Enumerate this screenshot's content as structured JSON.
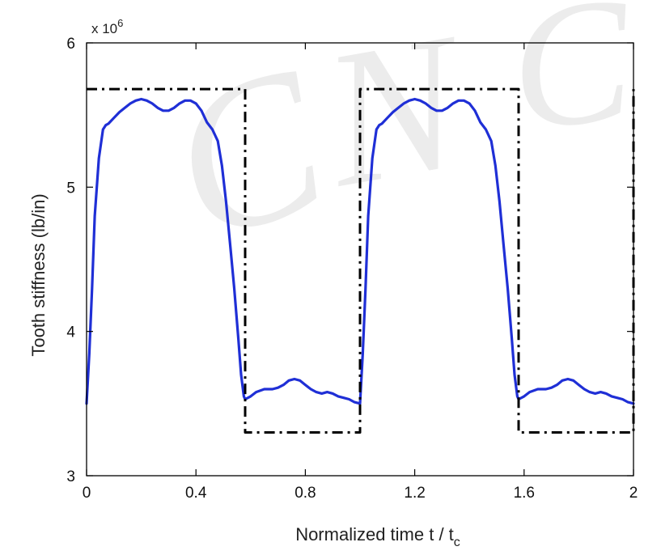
{
  "chart_data": {
    "type": "line",
    "title": "",
    "xlabel": "Normalized time t / t",
    "xlabel_subscript": "c",
    "ylabel": "Tooth stiffness (lb/in)",
    "y_scale_label": "x 10",
    "y_scale_exponent": "6",
    "watermark": "CNC",
    "xlim": [
      0,
      2
    ],
    "ylim": [
      3,
      6
    ],
    "x_ticks": [
      "0",
      "0.4",
      "0.8",
      "1.2",
      "1.6",
      "2"
    ],
    "y_ticks": [
      "3",
      "4",
      "5",
      "6"
    ],
    "grid": false,
    "legend": "none",
    "series": [
      {
        "style": "solid",
        "color": "#1f2fd6",
        "x": [
          0.0,
          0.01,
          0.02,
          0.03,
          0.045,
          0.06,
          0.07,
          0.08,
          0.1,
          0.12,
          0.14,
          0.16,
          0.18,
          0.2,
          0.22,
          0.24,
          0.26,
          0.28,
          0.3,
          0.32,
          0.34,
          0.36,
          0.38,
          0.4,
          0.42,
          0.44,
          0.46,
          0.48,
          0.495,
          0.51,
          0.525,
          0.54,
          0.555,
          0.565,
          0.575,
          0.58,
          0.6,
          0.62,
          0.65,
          0.68,
          0.7,
          0.72,
          0.74,
          0.76,
          0.78,
          0.8,
          0.82,
          0.84,
          0.86,
          0.88,
          0.9,
          0.92,
          0.94,
          0.96,
          0.98,
          1.0,
          1.01,
          1.02,
          1.03,
          1.045,
          1.06,
          1.07,
          1.08,
          1.1,
          1.12,
          1.14,
          1.16,
          1.18,
          1.2,
          1.22,
          1.24,
          1.26,
          1.28,
          1.3,
          1.32,
          1.34,
          1.36,
          1.38,
          1.4,
          1.42,
          1.44,
          1.46,
          1.48,
          1.495,
          1.51,
          1.525,
          1.54,
          1.555,
          1.565,
          1.575,
          1.58,
          1.6,
          1.62,
          1.65,
          1.68,
          1.7,
          1.72,
          1.74,
          1.76,
          1.78,
          1.8,
          1.82,
          1.84,
          1.86,
          1.88,
          1.9,
          1.92,
          1.94,
          1.96,
          1.98,
          2.0
        ],
        "y": [
          3.5,
          3.85,
          4.3,
          4.8,
          5.2,
          5.4,
          5.43,
          5.44,
          5.48,
          5.52,
          5.55,
          5.58,
          5.6,
          5.61,
          5.6,
          5.58,
          5.55,
          5.53,
          5.53,
          5.55,
          5.58,
          5.6,
          5.6,
          5.58,
          5.53,
          5.45,
          5.4,
          5.32,
          5.15,
          4.9,
          4.6,
          4.3,
          3.95,
          3.7,
          3.55,
          3.53,
          3.55,
          3.58,
          3.6,
          3.6,
          3.61,
          3.63,
          3.66,
          3.67,
          3.66,
          3.63,
          3.6,
          3.58,
          3.57,
          3.58,
          3.57,
          3.55,
          3.54,
          3.53,
          3.51,
          3.5,
          3.85,
          4.3,
          4.8,
          5.2,
          5.4,
          5.43,
          5.44,
          5.48,
          5.52,
          5.55,
          5.58,
          5.6,
          5.61,
          5.6,
          5.58,
          5.55,
          5.53,
          5.53,
          5.55,
          5.58,
          5.6,
          5.6,
          5.58,
          5.53,
          5.45,
          5.4,
          5.32,
          5.15,
          4.9,
          4.6,
          4.3,
          3.95,
          3.7,
          3.55,
          3.53,
          3.55,
          3.58,
          3.6,
          3.6,
          3.61,
          3.63,
          3.66,
          3.67,
          3.66,
          3.63,
          3.6,
          3.58,
          3.57,
          3.58,
          3.57,
          3.55,
          3.54,
          3.53,
          3.51,
          3.5
        ]
      },
      {
        "style": "dash-dot",
        "color": "#000000",
        "x": [
          0.0,
          0.58,
          0.58,
          1.0,
          1.0,
          1.58,
          1.58,
          2.0,
          2.0
        ],
        "y": [
          5.68,
          5.68,
          3.3,
          3.3,
          5.68,
          5.68,
          3.3,
          3.3,
          5.68
        ]
      }
    ]
  }
}
